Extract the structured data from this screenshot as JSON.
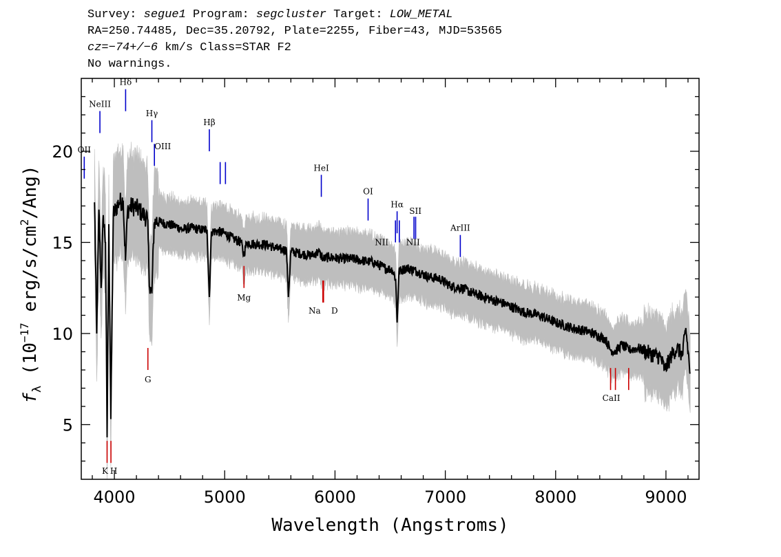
{
  "header": {
    "line1": {
      "survey_key": "Survey: ",
      "survey": "segue1",
      "program_key": " Program: ",
      "program": "segcluster",
      "target_key": " Target: ",
      "target": "LOW_METAL"
    },
    "line2": "RA=250.74485, Dec=35.20792, Plate=2255, Fiber=43, MJD=53565",
    "line3": {
      "cz_key": "cz",
      "cz_value": "=−74+/−6",
      "rest": " km/s Class=STAR F2"
    },
    "line4": "No warnings."
  },
  "chart_data": {
    "type": "line",
    "title": "",
    "xlabel": "Wavelength (Angstroms)",
    "ylabel": "f_λ (10^-17 erg/s/cm^2/Ang)",
    "ylabel_parts": {
      "symbol": "f",
      "sub": "λ",
      "pre": " (10",
      "exp1": "−17",
      "mid": " erg/s/cm",
      "exp2": "2",
      "post": "/Ang)"
    },
    "xlim": [
      3700,
      9300
    ],
    "ylim": [
      2,
      24
    ],
    "x_ticks": [
      4000,
      5000,
      6000,
      7000,
      8000,
      9000
    ],
    "y_ticks": [
      5,
      10,
      15,
      20
    ],
    "grid": false,
    "colors": {
      "spectrum": "#000000",
      "error_band": "#bebebe",
      "emission": "#0000cc",
      "absorption": "#cc0000"
    },
    "series": [
      {
        "role": "spectrum",
        "x": [
          3820,
          3840,
          3860,
          3880,
          3900,
          3920,
          3934,
          3950,
          3968,
          3990,
          4010,
          4040,
          4080,
          4101,
          4120,
          4160,
          4200,
          4250,
          4300,
          4320,
          4340,
          4360,
          4380,
          4420,
          4480,
          4550,
          4620,
          4700,
          4780,
          4840,
          4861,
          4880,
          4940,
          5000,
          5080,
          5150,
          5172,
          5200,
          5270,
          5350,
          5420,
          5500,
          5560,
          5577,
          5600,
          5680,
          5760,
          5800,
          5850,
          5893,
          5950,
          6050,
          6150,
          6250,
          6350,
          6450,
          6520,
          6550,
          6563,
          6580,
          6650,
          6750,
          6850,
          6950,
          7050,
          7150,
          7250,
          7400,
          7550,
          7700,
          7850,
          8000,
          8150,
          8300,
          8450,
          8498,
          8542,
          8600,
          8662,
          8750,
          8850,
          8950,
          8990,
          9050,
          9100,
          9150,
          9180,
          9220
        ],
        "y": [
          17.2,
          10.0,
          16.8,
          12.5,
          16.5,
          15.0,
          4.3,
          16.0,
          5.3,
          16.5,
          16.8,
          17.2,
          17.3,
          14.0,
          16.8,
          17.0,
          16.9,
          16.6,
          16.3,
          12.5,
          12.2,
          16.0,
          16.2,
          16.1,
          16.0,
          15.9,
          15.7,
          15.8,
          15.7,
          15.7,
          12.0,
          15.6,
          15.6,
          15.5,
          15.2,
          15.0,
          14.3,
          15.0,
          14.9,
          14.9,
          14.8,
          14.6,
          14.6,
          12.0,
          14.5,
          14.4,
          14.3,
          14.3,
          14.5,
          14.1,
          14.2,
          14.1,
          14.1,
          14.0,
          13.9,
          13.6,
          13.5,
          13.0,
          10.6,
          13.4,
          13.6,
          13.4,
          13.1,
          13.0,
          12.6,
          12.5,
          12.2,
          11.9,
          11.6,
          11.2,
          11.0,
          10.6,
          10.3,
          10.1,
          9.7,
          9.1,
          9.0,
          9.4,
          9.1,
          9.2,
          8.9,
          8.7,
          8.0,
          8.8,
          9.2,
          8.8,
          10.3,
          7.8
        ]
      }
    ],
    "lines": [
      {
        "label": "OII",
        "wavelength": 3727,
        "kind": "emission",
        "level": 18.5
      },
      {
        "label": "NeIII",
        "wavelength": 3869,
        "kind": "emission",
        "level": 21.0
      },
      {
        "label": "Hδ",
        "wavelength": 4102,
        "kind": "emission",
        "level": 22.2
      },
      {
        "label": "Hγ",
        "wavelength": 4340,
        "kind": "emission",
        "level": 20.5
      },
      {
        "label": "OIII",
        "wavelength": 4363,
        "kind": "emission",
        "level": 19.2
      },
      {
        "label": "Hβ",
        "wavelength": 4861,
        "kind": "emission",
        "level": 20.0
      },
      {
        "label": "OIII",
        "wavelength": 4959,
        "kind": "emission",
        "level": 18.2
      },
      {
        "label": "OIII",
        "wavelength": 5007,
        "kind": "emission",
        "level": 18.2
      },
      {
        "label": "HeI",
        "wavelength": 5876,
        "kind": "emission",
        "level": 17.5
      },
      {
        "label": "OI",
        "wavelength": 6300,
        "kind": "emission",
        "level": 16.2
      },
      {
        "label": "NII",
        "wavelength": 6548,
        "kind": "emission",
        "level": 15.0
      },
      {
        "label": "Hα",
        "wavelength": 6563,
        "kind": "emission",
        "level": 15.5
      },
      {
        "label": "NII",
        "wavelength": 6583,
        "kind": "emission",
        "level": 15.0
      },
      {
        "label": "SII",
        "wavelength": 6716,
        "kind": "emission",
        "level": 15.2
      },
      {
        "label": "SII",
        "wavelength": 6731,
        "kind": "emission",
        "level": 15.2
      },
      {
        "label": "ArIII",
        "wavelength": 7136,
        "kind": "emission",
        "level": 14.2
      },
      {
        "label": "K",
        "wavelength": 3934,
        "kind": "absorption",
        "level": 2.9
      },
      {
        "label": "H",
        "wavelength": 3969,
        "kind": "absorption",
        "level": 2.9
      },
      {
        "label": "G",
        "wavelength": 4304,
        "kind": "absorption",
        "level": 8.0
      },
      {
        "label": "Mg",
        "wavelength": 5175,
        "kind": "absorption",
        "level": 12.5
      },
      {
        "label": "Na",
        "wavelength": 5890,
        "kind": "absorption",
        "level": 11.7
      },
      {
        "label": "D",
        "wavelength": 5896,
        "kind": "absorption",
        "level": 11.7
      },
      {
        "label": "CaII",
        "wavelength": 8498,
        "kind": "absorption",
        "level": 6.9
      },
      {
        "label": "CaII",
        "wavelength": 8542,
        "kind": "absorption",
        "level": 6.9
      },
      {
        "label": "CaII",
        "wavelength": 8662,
        "kind": "absorption",
        "level": 6.9
      }
    ]
  }
}
